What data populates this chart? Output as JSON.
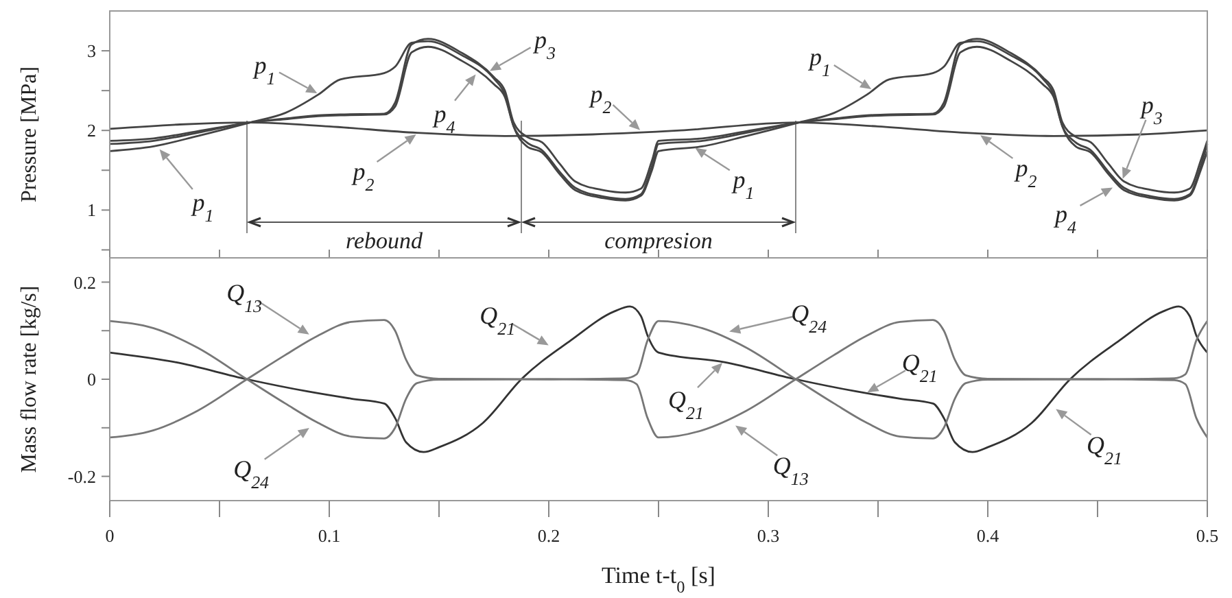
{
  "chart_data": [
    {
      "type": "line",
      "ylabel": "Pressure [MPa]",
      "xlim": [
        0,
        0.5
      ],
      "xticks": [
        0,
        {
          "value": 0.05,
          "label": null
        },
        0.1,
        {
          "value": 0.15,
          "label": null
        },
        0.2,
        {
          "value": 0.25,
          "label": null
        },
        0.3,
        {
          "value": 0.35,
          "label": null
        },
        0.4,
        {
          "value": 0.45,
          "label": null
        },
        0.5
      ],
      "ylim": [
        0.4,
        3.5
      ],
      "yticks": [
        {
          "value": 0.5,
          "label": null
        },
        1,
        {
          "value": 1.5,
          "label": null
        },
        2,
        {
          "value": 2.5,
          "label": null
        },
        3
      ],
      "tick_labels": "y",
      "grid": false,
      "x": [
        0,
        0.02,
        0.04,
        0.064,
        0.08,
        0.095,
        0.105,
        0.125,
        0.13,
        0.1375,
        0.145,
        0.16,
        0.175,
        0.18,
        0.184,
        0.19,
        0.197,
        0.205,
        0.212,
        0.225,
        0.235,
        0.242,
        0.247,
        0.25,
        0.27,
        0.29,
        0.314,
        0.33,
        0.345,
        0.355,
        0.375,
        0.38,
        0.3875,
        0.395,
        0.41,
        0.425,
        0.43,
        0.434,
        0.44,
        0.447,
        0.455,
        0.462,
        0.475,
        0.485,
        0.492,
        0.497,
        0.5
      ],
      "series": [
        {
          "color": "#444444",
          "values": [
            1.74,
            1.8,
            1.93,
            2.1,
            2.22,
            2.45,
            2.64,
            2.72,
            2.8,
            3.1,
            3.12,
            2.95,
            2.65,
            2.45,
            2.05,
            1.8,
            1.72,
            1.45,
            1.25,
            1.15,
            1.12,
            1.18,
            1.5,
            1.74,
            1.8,
            1.93,
            2.1,
            2.22,
            2.45,
            2.64,
            2.72,
            2.8,
            3.1,
            3.12,
            2.95,
            2.65,
            2.45,
            2.05,
            1.8,
            1.72,
            1.45,
            1.25,
            1.15,
            1.12,
            1.18,
            1.5,
            1.74
          ]
        },
        {
          "color": "#444444",
          "x": [
            0,
            0.064,
            0.1,
            0.14,
            0.18,
            0.22,
            0.26,
            0.3125,
            0.35,
            0.39,
            0.43,
            0.47,
            0.5
          ],
          "values": [
            2.02,
            2.1,
            2.05,
            1.97,
            1.93,
            1.95,
            2.0,
            2.1,
            2.05,
            1.97,
            1.93,
            1.95,
            2.0
          ]
        },
        {
          "color": "#444444",
          "values": [
            1.87,
            1.9,
            1.99,
            2.1,
            2.15,
            2.19,
            2.2,
            2.21,
            2.35,
            3.08,
            3.15,
            2.98,
            2.67,
            2.5,
            2.1,
            1.92,
            1.85,
            1.58,
            1.36,
            1.25,
            1.22,
            1.27,
            1.62,
            1.87,
            1.9,
            1.99,
            2.1,
            2.15,
            2.19,
            2.2,
            2.21,
            2.35,
            3.08,
            3.15,
            2.98,
            2.67,
            2.5,
            2.1,
            1.92,
            1.85,
            1.58,
            1.36,
            1.25,
            1.22,
            1.27,
            1.62,
            1.87
          ]
        },
        {
          "color": "#444444",
          "values": [
            1.83,
            1.87,
            1.97,
            2.1,
            2.14,
            2.18,
            2.19,
            2.2,
            2.3,
            2.98,
            3.05,
            2.88,
            2.58,
            2.42,
            2.05,
            1.85,
            1.75,
            1.48,
            1.28,
            1.17,
            1.14,
            1.2,
            1.55,
            1.83,
            1.87,
            1.97,
            2.1,
            2.14,
            2.18,
            2.19,
            2.2,
            2.3,
            2.98,
            3.05,
            2.88,
            2.58,
            2.42,
            2.05,
            1.85,
            1.75,
            1.48,
            1.28,
            1.17,
            1.14,
            1.2,
            1.55,
            1.83
          ]
        }
      ],
      "ref_lines": [
        {
          "axis": "x",
          "value": 0.0625,
          "color": "#888888"
        },
        {
          "axis": "x",
          "value": 0.1875,
          "color": "#888888"
        },
        {
          "axis": "x",
          "value": 0.3125,
          "color": "#888888"
        }
      ],
      "annotations": [
        "rebound",
        "compresion",
        {
          "text": "p$_{1}$",
          "x": 0.0956,
          "y": 2.45
        },
        {
          "text": "p$_{3}$",
          "x": 0.172,
          "y": 2.73
        },
        {
          "text": "p$_{4}$",
          "x": 0.1675,
          "y": 2.73
        },
        {
          "text": "p$_{2}$",
          "x": 0.2425,
          "y": 1.98
        },
        {
          "text": "p$_{2}$",
          "x": 0.1406,
          "y": 1.97
        },
        {
          "text": "p$_{1}$",
          "x": 0.0219,
          "y": 1.79
        },
        {
          "text": "p$_{1}$",
          "x": 0.348,
          "y": 2.5
        },
        {
          "text": "p$_{1}$",
          "x": 0.2656,
          "y": 1.8
        },
        {
          "text": "p$_{2}$",
          "x": 0.3956,
          "y": 1.96
        },
        {
          "text": "p$_{3}$",
          "x": 0.461,
          "y": 1.36
        },
        {
          "text": "p$_{4}$",
          "x": 0.458,
          "y": 1.3
        }
      ]
    },
    {
      "type": "line",
      "xlabel": "Time t-t$_{0}$ [s]",
      "ylabel": "Mass flow rate [kg/s]",
      "xlim": [
        0,
        0.5
      ],
      "xticks": [
        0,
        {
          "value": 0.05,
          "label": null
        },
        0.1,
        {
          "value": 0.15,
          "label": null
        },
        0.2,
        {
          "value": 0.25,
          "label": null
        },
        0.3,
        {
          "value": 0.35,
          "label": null
        },
        0.4,
        {
          "value": 0.45,
          "label": null
        },
        0.5
      ],
      "ylim": [
        -0.25,
        0.25
      ],
      "yticks": [
        -0.2,
        {
          "value": -0.1,
          "label": null
        },
        0,
        {
          "value": 0.1,
          "label": null
        },
        0.2
      ],
      "grid": false,
      "x": [
        0,
        0.02,
        0.04,
        0.0625,
        0.08,
        0.095,
        0.11,
        0.125,
        0.13,
        0.135,
        0.14,
        0.15,
        0.2,
        0.235,
        0.24,
        0.245,
        0.25,
        0.27,
        0.29,
        0.3125,
        0.33,
        0.345,
        0.36,
        0.375,
        0.38,
        0.385,
        0.39,
        0.4,
        0.45,
        0.485,
        0.49,
        0.495,
        0.5
      ],
      "series": [
        {
          "color": "#333333",
          "x": [
            0,
            0.03,
            0.0625,
            0.09,
            0.11,
            0.125,
            0.13,
            0.135,
            0.143,
            0.15,
            0.17,
            0.1875,
            0.21,
            0.23,
            0.237,
            0.242,
            0.245,
            0.25,
            0.28,
            0.3125,
            0.34,
            0.36,
            0.375,
            0.38,
            0.385,
            0.393,
            0.4,
            0.42,
            0.4375,
            0.46,
            0.48,
            0.487,
            0.492,
            0.495,
            0.5
          ],
          "values": [
            0.055,
            0.035,
            0,
            -0.025,
            -0.04,
            -0.05,
            -0.08,
            -0.13,
            -0.15,
            -0.14,
            -0.09,
            0,
            0.08,
            0.14,
            0.15,
            0.13,
            0.09,
            0.055,
            0.035,
            0,
            -0.025,
            -0.04,
            -0.05,
            -0.08,
            -0.13,
            -0.15,
            -0.14,
            -0.09,
            0,
            0.08,
            0.14,
            0.15,
            0.13,
            0.09,
            0.055
          ]
        },
        {
          "color": "#777777",
          "values": [
            -0.12,
            -0.105,
            -0.065,
            0,
            0.05,
            0.09,
            0.118,
            0.122,
            0.1,
            0.04,
            0.008,
            0.001,
            0,
            -0.002,
            -0.01,
            -0.08,
            -0.12,
            -0.105,
            -0.065,
            0,
            0.05,
            0.09,
            0.118,
            0.122,
            0.1,
            0.04,
            0.008,
            0.001,
            0,
            -0.002,
            -0.01,
            -0.08,
            -0.12
          ]
        },
        {
          "color": "#777777",
          "values": [
            0.12,
            0.105,
            0.065,
            0,
            -0.05,
            -0.09,
            -0.118,
            -0.122,
            -0.1,
            -0.04,
            -0.008,
            -0.001,
            0,
            0.002,
            0.01,
            0.08,
            0.12,
            0.105,
            0.065,
            0,
            -0.05,
            -0.09,
            -0.118,
            -0.122,
            -0.1,
            -0.04,
            -0.008,
            -0.001,
            0,
            0.002,
            0.01,
            0.08,
            0.12
          ]
        }
      ],
      "annotations": [
        {
          "text": "Q$_{13}$",
          "x": 0.0919,
          "y": 0.089
        },
        {
          "text": "Q$_{24}$",
          "x": 0.0919,
          "y": -0.097
        },
        {
          "text": "Q$_{21}$",
          "x": 0.201,
          "y": 0.067
        },
        {
          "text": "Q$_{24}$",
          "x": 0.281,
          "y": 0.097
        },
        {
          "text": "Q$_{21}$",
          "x": 0.28,
          "y": 0.038
        },
        {
          "text": "Q$_{21}$",
          "x": 0.344,
          "y": -0.03
        },
        {
          "text": "Q$_{13}$",
          "x": 0.284,
          "y": -0.092
        },
        {
          "text": "Q$_{21}$",
          "x": 0.43,
          "y": -0.058
        }
      ]
    }
  ]
}
